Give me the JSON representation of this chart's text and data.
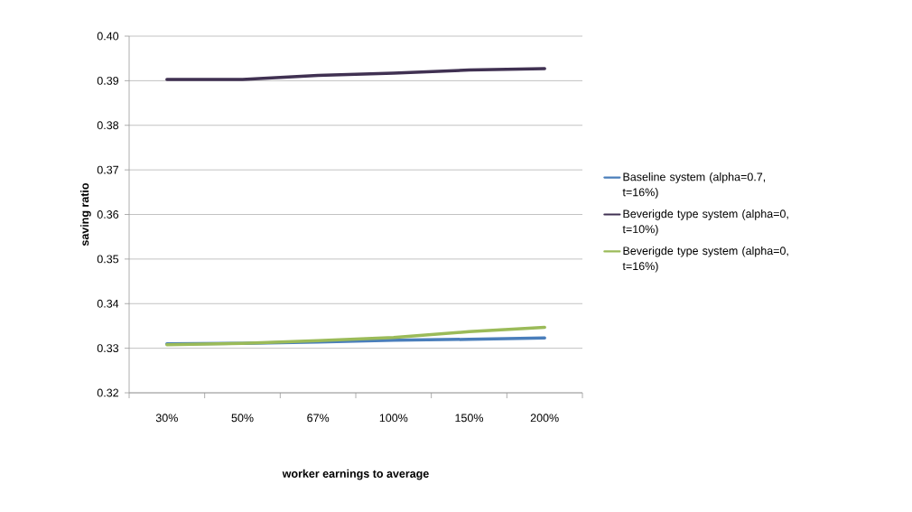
{
  "chart_data": {
    "type": "line",
    "xlabel": "worker earnings to average",
    "ylabel": "saving ratio",
    "categories": [
      "30%",
      "50%",
      "67%",
      "100%",
      "150%",
      "200%"
    ],
    "series": [
      {
        "name": "Baseline system (alpha=0.7, t=16%)",
        "color": "#4a7ebb",
        "values": [
          0.331,
          0.3311,
          0.3314,
          0.3318,
          0.332,
          0.3323
        ]
      },
      {
        "name": "Beverigde type system (alpha=0, t=10%)",
        "color": "#403152",
        "values": [
          0.3903,
          0.3903,
          0.3912,
          0.3917,
          0.3924,
          0.3927
        ]
      },
      {
        "name": "Beverigde type system (alpha=0, t=16%)",
        "color": "#9bbb59",
        "values": [
          0.3308,
          0.3311,
          0.3317,
          0.3324,
          0.3337,
          0.3347
        ]
      }
    ],
    "ylim": [
      0.32,
      0.4
    ],
    "yticks": [
      0.32,
      0.33,
      0.34,
      0.35,
      0.36,
      0.37,
      0.38,
      0.39,
      {
        "value": 0.4,
        "label": "0.40"
      }
    ],
    "grid": "y",
    "legend": "right",
    "marker": "none",
    "line_style": "solid"
  }
}
